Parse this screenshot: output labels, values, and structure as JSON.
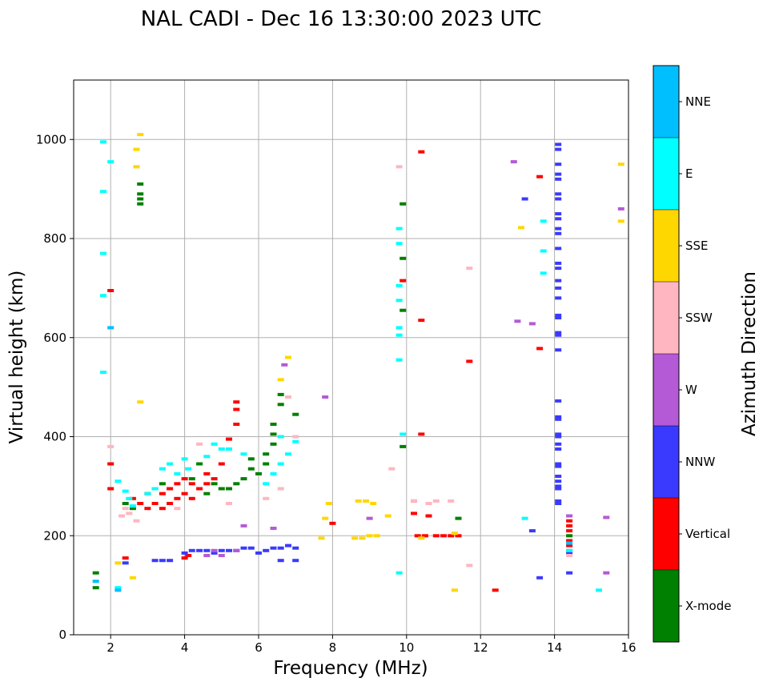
{
  "chart_data": {
    "type": "scatter",
    "title": "NAL CADI - Dec 16 13:30:00 2023 UTC",
    "xlabel": "Frequency (MHz)",
    "ylabel": "Virtual height (km)",
    "xlim": [
      1.0,
      16.0
    ],
    "ylim": [
      0,
      1120
    ],
    "xticks": [
      2,
      4,
      6,
      8,
      10,
      12,
      14,
      16
    ],
    "yticks": [
      0,
      200,
      400,
      600,
      800,
      1000
    ],
    "grid": true,
    "colorbar": {
      "label": "Azimuth Direction",
      "categories": [
        "X-mode",
        "Vertical",
        "NNW",
        "W",
        "SSW",
        "SSE",
        "E",
        "NNE"
      ],
      "colors": [
        "#008000",
        "#ff0000",
        "#3a3aff",
        "#b45ad6",
        "#ffb6c1",
        "#ffd700",
        "#00ffff",
        "#00bfff"
      ]
    },
    "series": [
      {
        "name": "X-mode",
        "points": [
          [
            1.6,
            95
          ],
          [
            1.6,
            125
          ],
          [
            2.8,
            870
          ],
          [
            2.8,
            880
          ],
          [
            2.8,
            890
          ],
          [
            2.8,
            910
          ],
          [
            2.4,
            265
          ],
          [
            2.6,
            255
          ],
          [
            3.4,
            305
          ],
          [
            4.2,
            315
          ],
          [
            4.4,
            345
          ],
          [
            4.6,
            285
          ],
          [
            4.8,
            305
          ],
          [
            5.0,
            295
          ],
          [
            5.2,
            295
          ],
          [
            5.4,
            305
          ],
          [
            5.6,
            315
          ],
          [
            5.8,
            335
          ],
          [
            5.8,
            355
          ],
          [
            6.0,
            325
          ],
          [
            6.2,
            345
          ],
          [
            6.2,
            365
          ],
          [
            6.4,
            385
          ],
          [
            6.4,
            405
          ],
          [
            6.4,
            425
          ],
          [
            6.6,
            465
          ],
          [
            6.6,
            485
          ],
          [
            7.0,
            445
          ],
          [
            9.9,
            760
          ],
          [
            9.9,
            870
          ],
          [
            9.9,
            655
          ],
          [
            9.9,
            380
          ],
          [
            11.4,
            235
          ],
          [
            14.4,
            200
          ]
        ]
      },
      {
        "name": "Vertical",
        "points": [
          [
            2.0,
            695
          ],
          [
            2.0,
            345
          ],
          [
            2.0,
            295
          ],
          [
            2.4,
            155
          ],
          [
            2.6,
            275
          ],
          [
            2.8,
            265
          ],
          [
            3.0,
            255
          ],
          [
            3.0,
            285
          ],
          [
            3.2,
            265
          ],
          [
            3.2,
            295
          ],
          [
            3.4,
            255
          ],
          [
            3.4,
            285
          ],
          [
            3.6,
            265
          ],
          [
            3.6,
            295
          ],
          [
            3.8,
            275
          ],
          [
            3.8,
            305
          ],
          [
            4.0,
            285
          ],
          [
            4.0,
            315
          ],
          [
            4.2,
            275
          ],
          [
            4.2,
            305
          ],
          [
            4.4,
            295
          ],
          [
            4.6,
            305
          ],
          [
            4.6,
            325
          ],
          [
            4.8,
            315
          ],
          [
            5.0,
            345
          ],
          [
            5.2,
            395
          ],
          [
            5.4,
            425
          ],
          [
            5.4,
            470
          ],
          [
            5.4,
            455
          ],
          [
            4.0,
            155
          ],
          [
            4.1,
            160
          ],
          [
            8.0,
            225
          ],
          [
            9.9,
            715
          ],
          [
            10.2,
            270
          ],
          [
            10.2,
            245
          ],
          [
            10.3,
            200
          ],
          [
            10.5,
            200
          ],
          [
            10.6,
            240
          ],
          [
            10.8,
            200
          ],
          [
            11.0,
            200
          ],
          [
            11.2,
            200
          ],
          [
            11.4,
            200
          ],
          [
            10.4,
            405
          ],
          [
            10.4,
            635
          ],
          [
            10.4,
            975
          ],
          [
            11.7,
            552
          ],
          [
            12.4,
            90
          ],
          [
            13.6,
            578
          ],
          [
            13.6,
            925
          ],
          [
            14.4,
            170
          ],
          [
            14.4,
            180
          ],
          [
            14.4,
            190
          ],
          [
            14.4,
            210
          ],
          [
            14.4,
            220
          ],
          [
            14.4,
            230
          ]
        ]
      },
      {
        "name": "NNW",
        "points": [
          [
            2.4,
            145
          ],
          [
            3.2,
            150
          ],
          [
            3.4,
            150
          ],
          [
            3.6,
            150
          ],
          [
            4.0,
            165
          ],
          [
            4.2,
            170
          ],
          [
            4.4,
            170
          ],
          [
            4.6,
            170
          ],
          [
            4.8,
            165
          ],
          [
            5.0,
            170
          ],
          [
            5.2,
            170
          ],
          [
            5.4,
            170
          ],
          [
            5.6,
            175
          ],
          [
            5.8,
            175
          ],
          [
            6.0,
            165
          ],
          [
            6.2,
            170
          ],
          [
            6.4,
            175
          ],
          [
            6.6,
            175
          ],
          [
            6.8,
            180
          ],
          [
            7.0,
            175
          ],
          [
            6.6,
            150
          ],
          [
            7.0,
            150
          ],
          [
            13.2,
            880
          ],
          [
            13.4,
            210
          ],
          [
            13.6,
            115
          ],
          [
            14.1,
            990
          ],
          [
            14.1,
            980
          ],
          [
            14.1,
            950
          ],
          [
            14.1,
            930
          ],
          [
            14.1,
            920
          ],
          [
            14.1,
            890
          ],
          [
            14.1,
            880
          ],
          [
            14.1,
            850
          ],
          [
            14.1,
            840
          ],
          [
            14.1,
            820
          ],
          [
            14.1,
            810
          ],
          [
            14.1,
            780
          ],
          [
            14.1,
            750
          ],
          [
            14.1,
            740
          ],
          [
            14.1,
            715
          ],
          [
            14.1,
            700
          ],
          [
            14.1,
            680
          ],
          [
            14.1,
            645
          ],
          [
            14.1,
            640
          ],
          [
            14.1,
            610
          ],
          [
            14.1,
            605
          ],
          [
            14.1,
            575
          ],
          [
            14.1,
            472
          ],
          [
            14.1,
            440
          ],
          [
            14.1,
            435
          ],
          [
            14.1,
            405
          ],
          [
            14.1,
            400
          ],
          [
            14.1,
            385
          ],
          [
            14.1,
            375
          ],
          [
            14.1,
            345
          ],
          [
            14.1,
            340
          ],
          [
            14.1,
            320
          ],
          [
            14.1,
            310
          ],
          [
            14.1,
            300
          ],
          [
            14.1,
            295
          ],
          [
            14.1,
            270
          ],
          [
            14.1,
            265
          ],
          [
            14.4,
            165
          ],
          [
            14.4,
            125
          ]
        ]
      },
      {
        "name": "W",
        "points": [
          [
            4.6,
            160
          ],
          [
            4.8,
            170
          ],
          [
            5.0,
            160
          ],
          [
            5.4,
            170
          ],
          [
            5.6,
            220
          ],
          [
            6.4,
            215
          ],
          [
            6.7,
            545
          ],
          [
            7.8,
            480
          ],
          [
            9.0,
            235
          ],
          [
            12.9,
            955
          ],
          [
            13.0,
            633
          ],
          [
            13.4,
            628
          ],
          [
            14.4,
            240
          ],
          [
            15.4,
            237
          ],
          [
            15.4,
            125
          ],
          [
            15.8,
            860
          ]
        ]
      },
      {
        "name": "SSW",
        "points": [
          [
            2.0,
            380
          ],
          [
            2.3,
            240
          ],
          [
            2.4,
            255
          ],
          [
            2.5,
            245
          ],
          [
            2.7,
            230
          ],
          [
            3.8,
            255
          ],
          [
            4.4,
            385
          ],
          [
            5.2,
            265
          ],
          [
            6.2,
            275
          ],
          [
            6.6,
            295
          ],
          [
            6.8,
            480
          ],
          [
            7.0,
            400
          ],
          [
            9.6,
            335
          ],
          [
            9.8,
            945
          ],
          [
            10.2,
            270
          ],
          [
            10.6,
            265
          ],
          [
            10.8,
            270
          ],
          [
            11.2,
            270
          ],
          [
            11.7,
            740
          ],
          [
            11.7,
            140
          ],
          [
            14.4,
            160
          ]
        ]
      },
      {
        "name": "SSE",
        "points": [
          [
            2.8,
            1010
          ],
          [
            2.7,
            980
          ],
          [
            2.7,
            945
          ],
          [
            2.8,
            470
          ],
          [
            2.2,
            145
          ],
          [
            2.6,
            115
          ],
          [
            7.7,
            195
          ],
          [
            7.8,
            235
          ],
          [
            7.9,
            265
          ],
          [
            8.6,
            195
          ],
          [
            8.8,
            195
          ],
          [
            9.0,
            200
          ],
          [
            9.2,
            200
          ],
          [
            8.7,
            270
          ],
          [
            8.9,
            270
          ],
          [
            9.1,
            265
          ],
          [
            9.5,
            240
          ],
          [
            10.4,
            195
          ],
          [
            11.3,
            90
          ],
          [
            11.3,
            205
          ],
          [
            13.1,
            822
          ],
          [
            15.8,
            835
          ],
          [
            15.8,
            950
          ],
          [
            6.6,
            515
          ],
          [
            6.8,
            560
          ]
        ]
      },
      {
        "name": "E",
        "points": [
          [
            1.8,
            995
          ],
          [
            1.8,
            895
          ],
          [
            2.0,
            955
          ],
          [
            1.8,
            770
          ],
          [
            1.8,
            685
          ],
          [
            1.8,
            530
          ],
          [
            2.2,
            310
          ],
          [
            2.4,
            290
          ],
          [
            2.5,
            275
          ],
          [
            2.6,
            260
          ],
          [
            3.0,
            285
          ],
          [
            3.2,
            295
          ],
          [
            3.4,
            335
          ],
          [
            3.6,
            345
          ],
          [
            3.8,
            325
          ],
          [
            4.0,
            355
          ],
          [
            4.1,
            335
          ],
          [
            4.6,
            360
          ],
          [
            4.8,
            385
          ],
          [
            5.0,
            375
          ],
          [
            5.2,
            375
          ],
          [
            5.6,
            365
          ],
          [
            6.2,
            305
          ],
          [
            6.4,
            325
          ],
          [
            6.6,
            345
          ],
          [
            6.8,
            365
          ],
          [
            6.6,
            400
          ],
          [
            7.0,
            390
          ],
          [
            9.8,
            820
          ],
          [
            9.8,
            790
          ],
          [
            9.8,
            705
          ],
          [
            9.8,
            675
          ],
          [
            9.8,
            620
          ],
          [
            9.8,
            605
          ],
          [
            9.8,
            555
          ],
          [
            9.9,
            405
          ],
          [
            9.8,
            125
          ],
          [
            13.2,
            235
          ],
          [
            13.7,
            835
          ],
          [
            13.7,
            775
          ],
          [
            13.7,
            730
          ],
          [
            14.4,
            170
          ],
          [
            15.2,
            90
          ],
          [
            2.2,
            95
          ]
        ]
      },
      {
        "name": "NNE",
        "points": [
          [
            1.6,
            108
          ],
          [
            2.2,
            90
          ],
          [
            2.0,
            620
          ],
          [
            14.4,
            185
          ]
        ]
      }
    ]
  }
}
